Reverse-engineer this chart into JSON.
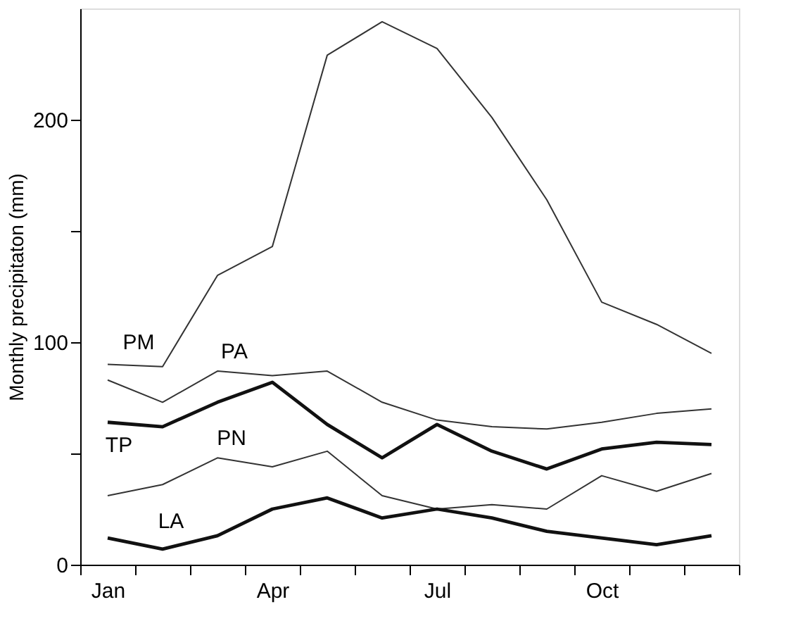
{
  "chart_data": {
    "type": "line",
    "ylabel": "Monthly precipitaton (mm)",
    "categories": [
      "Jan",
      null,
      null,
      "Apr",
      null,
      null,
      "Jul",
      null,
      null,
      "Oct",
      null,
      null
    ],
    "ylim": [
      0,
      250
    ],
    "yticks": [
      0,
      {
        "value": 50,
        "label": null
      },
      100,
      {
        "value": 150,
        "label": null
      },
      200
    ],
    "grid": false,
    "marker": "none",
    "line_style": "solid",
    "series": [
      {
        "name": "PM",
        "color": "#333333",
        "values": [
          90,
          89,
          130,
          143,
          229,
          244,
          232,
          201,
          164,
          118,
          108,
          95
        ]
      },
      {
        "name": "PA",
        "color": "#333333",
        "values": [
          83,
          73,
          87,
          85,
          87,
          73,
          65,
          62,
          61,
          64,
          68,
          70
        ]
      },
      {
        "name": "TP",
        "color": "#111111",
        "values": [
          64,
          62,
          73,
          82,
          63,
          48,
          63,
          51,
          43,
          52,
          55,
          54
        ]
      },
      {
        "name": "PN",
        "color": "#333333",
        "values": [
          31,
          36,
          48,
          44,
          51,
          31,
          25,
          27,
          25,
          40,
          33,
          41
        ]
      },
      {
        "name": "LA",
        "color": "#111111",
        "values": [
          12,
          7,
          13,
          25,
          30,
          21,
          25,
          21,
          15,
          12,
          9,
          13
        ]
      }
    ]
  }
}
